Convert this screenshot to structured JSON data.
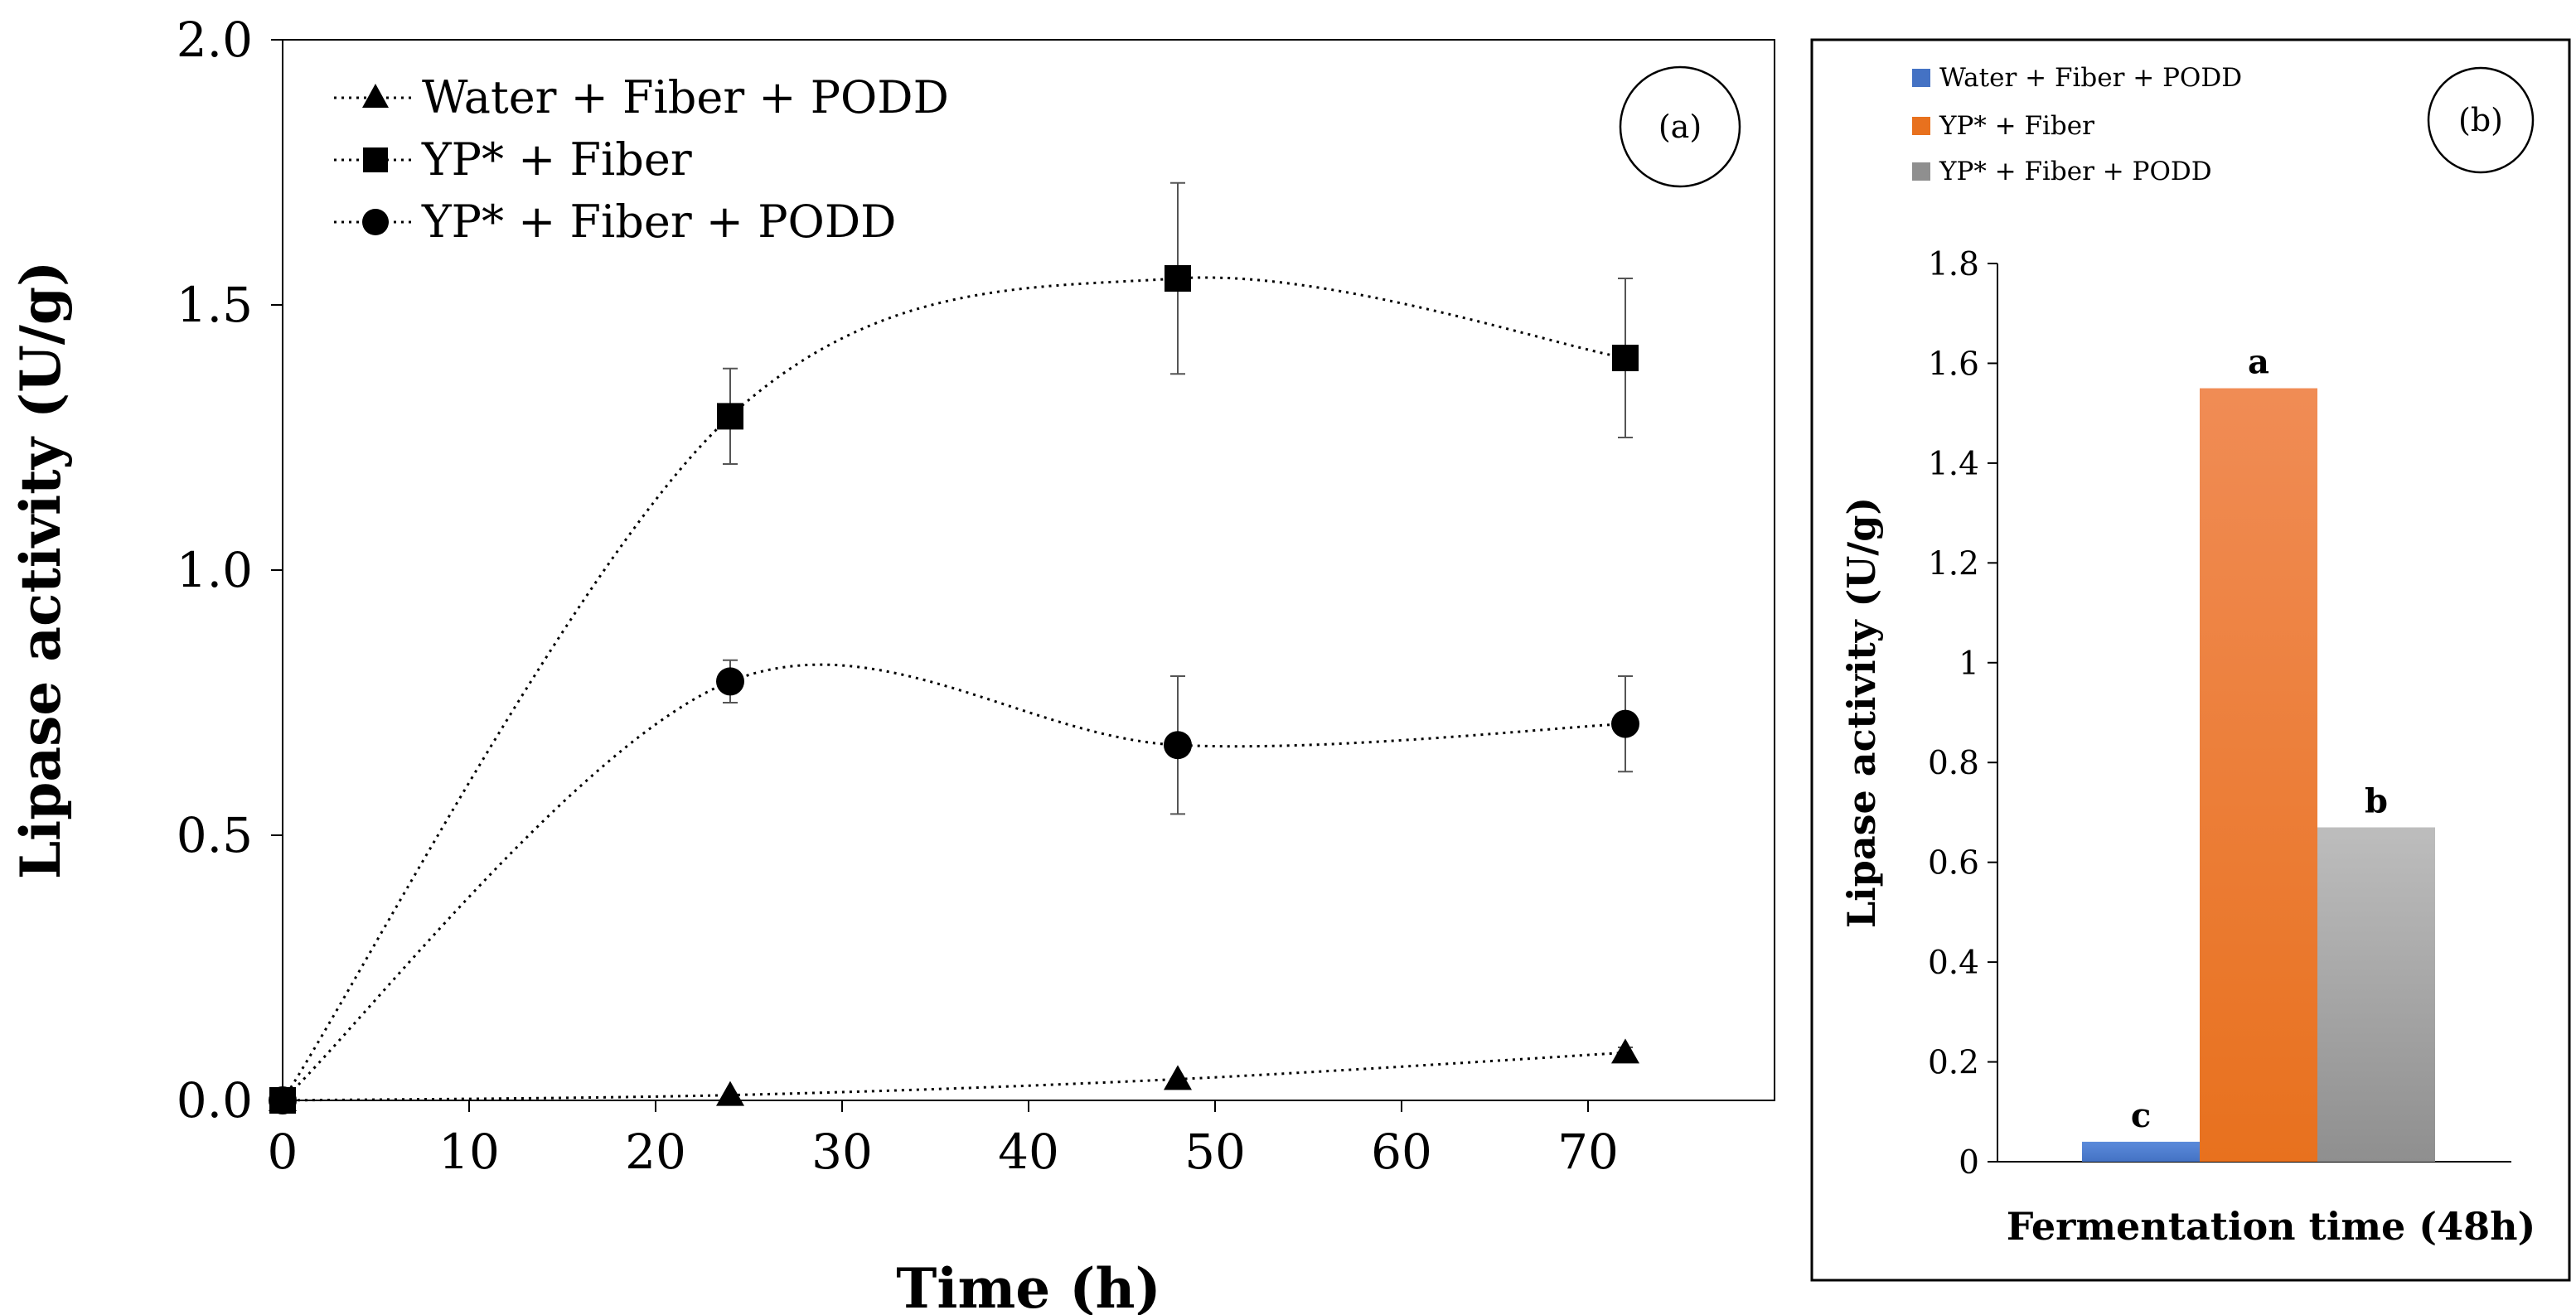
{
  "chart_data": [
    {
      "type": "line",
      "panel_tag": "(a)",
      "xlabel": "Time (h)",
      "ylabel": "Lipase activity (U/g)",
      "xlim": [
        0,
        80
      ],
      "ylim": [
        0,
        2.0
      ],
      "x_ticks": [
        "0",
        "10",
        "20",
        "30",
        "40",
        "50",
        "60",
        "70"
      ],
      "y_ticks": [
        "0.0",
        "0.5",
        "1.0",
        "1.5",
        "2.0"
      ],
      "series": [
        {
          "name": "Water + Fiber + PODD",
          "marker": "triangle",
          "x": [
            0,
            24,
            48,
            72
          ],
          "values": [
            0,
            0.01,
            0.04,
            0.09
          ],
          "errors": [
            0,
            0,
            0,
            0.01
          ]
        },
        {
          "name": "YP* + Fiber",
          "marker": "square",
          "x": [
            0,
            24,
            48,
            72
          ],
          "values": [
            0,
            1.29,
            1.55,
            1.4
          ],
          "errors": [
            0,
            0.09,
            0.18,
            0.15
          ]
        },
        {
          "name": "YP* + Fiber + PODD",
          "marker": "circle",
          "x": [
            0,
            24,
            48,
            72
          ],
          "values": [
            0,
            0.79,
            0.67,
            0.71
          ],
          "errors": [
            0,
            0.04,
            0.13,
            0.09
          ]
        }
      ]
    },
    {
      "type": "bar",
      "panel_tag": "(b)",
      "xlabel": "Fermentation time (48h)",
      "ylabel": "Lipase activity (U/g)",
      "ylim": [
        0,
        1.8
      ],
      "y_ticks": [
        "0",
        "0.2",
        "0.4",
        "0.6",
        "0.8",
        "1",
        "1.2",
        "1.4",
        "1.6",
        "1.8"
      ],
      "series": [
        {
          "name": "Water + Fiber + PODD",
          "value": 0.04,
          "label": "c",
          "color": "#4472C4",
          "color_light": "#5B8BDB"
        },
        {
          "name": "YP* + Fiber",
          "value": 1.55,
          "label": "a",
          "color": "#E8711E",
          "color_light": "#F08C55"
        },
        {
          "name": "YP* + Fiber + PODD",
          "value": 0.67,
          "label": "b",
          "color": "#8F8F8F",
          "color_light": "#BDBDBD"
        }
      ]
    }
  ]
}
